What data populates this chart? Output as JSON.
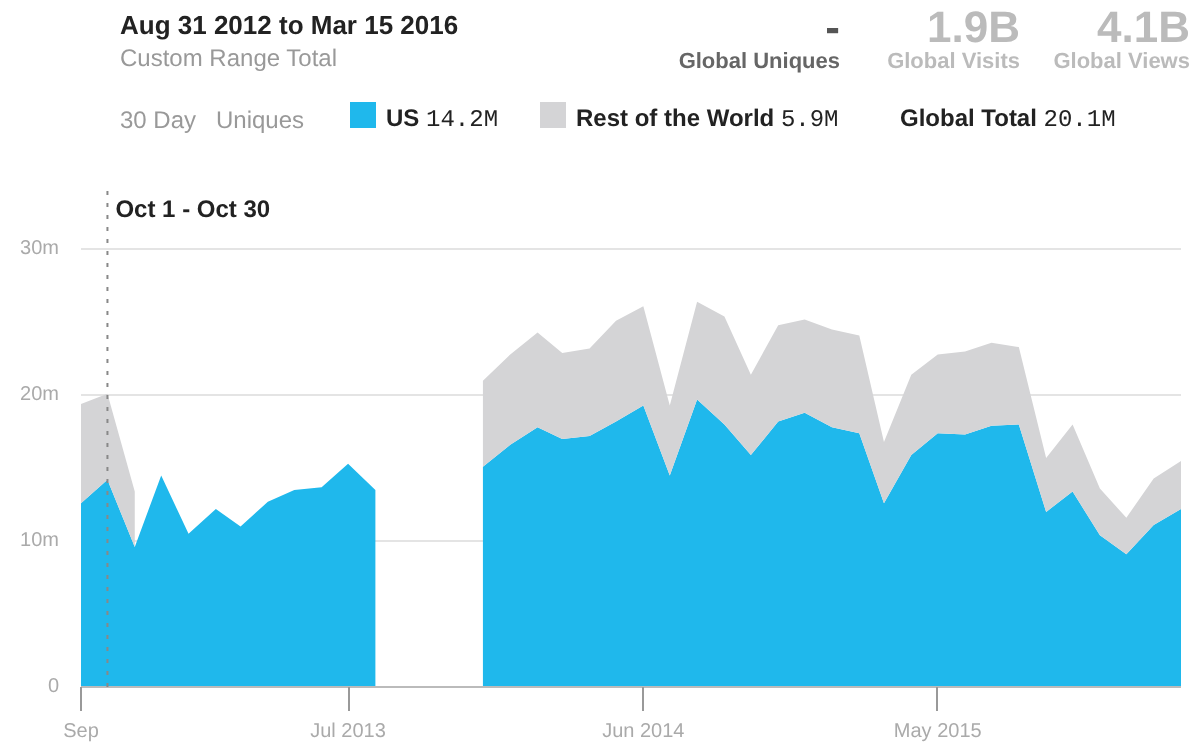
{
  "chart_data": {
    "type": "area",
    "title": "Aug 31 2012 to Mar 15 2016",
    "subtitle": "Custom Range Total",
    "stacked": true,
    "x": [
      "2012-09",
      "2012-10",
      "2012-11",
      "2012-12",
      "2013-01",
      "2013-02",
      "2013-03",
      "2013-04",
      "2013-05",
      "2013-06",
      "2013-07",
      "2013-08",
      "2013-09",
      "2013-10",
      "2013-11",
      "2013-12",
      "2014-01",
      "2014-02",
      "2014-03",
      "2014-04",
      "2014-05",
      "2014-06",
      "2014-07",
      "2014-08",
      "2014-09",
      "2014-10",
      "2014-11",
      "2014-12",
      "2015-01",
      "2015-02",
      "2015-03",
      "2015-04",
      "2015-05",
      "2015-06",
      "2015-07",
      "2015-08",
      "2015-09",
      "2015-10",
      "2015-11",
      "2015-12",
      "2016-01",
      "2016-02"
    ],
    "series": [
      {
        "name": "US",
        "color": "#1fb8ec",
        "values": [
          12.6,
          14.2,
          9.6,
          14.5,
          10.5,
          12.2,
          11.0,
          12.7,
          13.5,
          13.7,
          15.3,
          13.5,
          null,
          null,
          null,
          15.1,
          16.6,
          17.8,
          17.0,
          17.2,
          18.2,
          19.3,
          14.5,
          19.7,
          18.0,
          15.9,
          18.2,
          18.8,
          17.8,
          17.4,
          12.6,
          15.9,
          17.4,
          17.3,
          17.9,
          18.0,
          12.0,
          13.4,
          10.4,
          9.1,
          11.1,
          12.2
        ]
      },
      {
        "name": "Rest of the World",
        "color": "#d4d4d6",
        "values": [
          6.8,
          5.9,
          3.8,
          null,
          null,
          null,
          null,
          null,
          null,
          null,
          null,
          null,
          null,
          null,
          null,
          5.9,
          6.2,
          6.5,
          5.9,
          6.0,
          6.9,
          6.8,
          4.8,
          6.7,
          7.4,
          5.5,
          6.6,
          6.4,
          6.7,
          6.7,
          4.2,
          5.5,
          5.4,
          5.7,
          5.7,
          5.3,
          3.7,
          4.6,
          3.2,
          2.5,
          3.2,
          3.3
        ]
      }
    ],
    "xlim": [
      "2012-09",
      "2016-02"
    ],
    "xticks": [
      {
        "value": "2012-09",
        "label": "Sep"
      },
      {
        "value": "2013-07",
        "label": "Jul 2013"
      },
      {
        "value": "2014-06",
        "label": "Jun 2014"
      },
      {
        "value": "2015-05",
        "label": "May 2015"
      }
    ],
    "ylim": [
      0,
      34
    ],
    "yticks": [
      {
        "value": 0,
        "label": "0"
      },
      {
        "value": 10,
        "label": "10m"
      },
      {
        "value": 20,
        "label": "20m"
      },
      {
        "value": 30,
        "label": "30m"
      }
    ],
    "grid": "y",
    "legend": "top",
    "ref_lines": [
      {
        "axis": "x",
        "value": "2012-10",
        "label": "Oct 1 - Oct 30",
        "line_style": "dotted",
        "color": "#888888"
      }
    ],
    "annotations": [
      "-",
      "Global Uniques",
      "1.9B",
      "Global Visits",
      "4.1B",
      "Global Views",
      "30 Day",
      "Uniques",
      "Global Total",
      "14.2M",
      "5.9M",
      "20.1M"
    ]
  }
}
